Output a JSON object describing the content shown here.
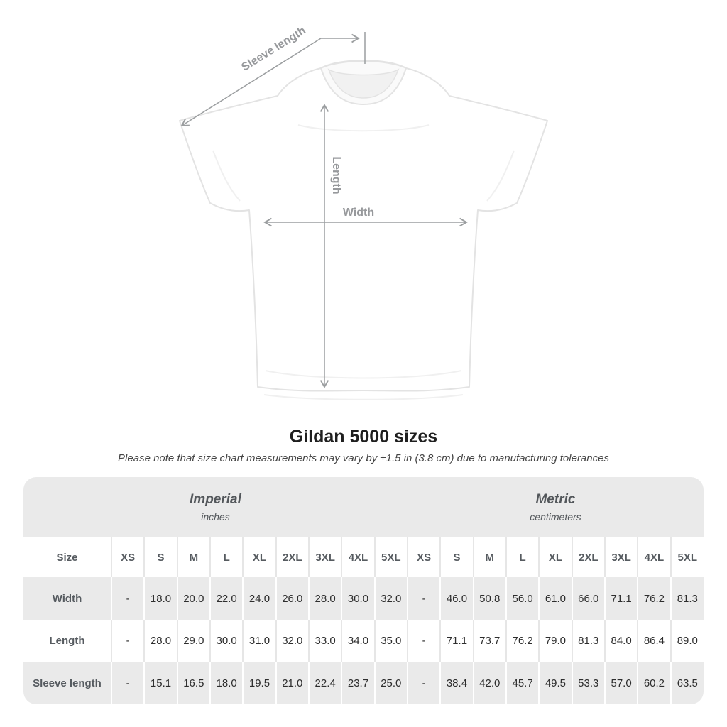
{
  "diagram": {
    "sleeve_label": "Sleeve length",
    "length_label": "Length",
    "width_label": "Width"
  },
  "title": "Gildan 5000 sizes",
  "subtitle": "Please note that size chart measurements may vary by ±1.5 in (3.8 cm) due to manufacturing tolerances",
  "table": {
    "groups": [
      {
        "label": "Imperial",
        "unit": "inches"
      },
      {
        "label": "Metric",
        "unit": "centimeters"
      }
    ],
    "size_header": "Size",
    "sizes": [
      "XS",
      "S",
      "M",
      "L",
      "XL",
      "2XL",
      "3XL",
      "4XL",
      "5XL"
    ],
    "rows": [
      {
        "label": "Width",
        "imperial": [
          "-",
          "18.0",
          "20.0",
          "22.0",
          "24.0",
          "26.0",
          "28.0",
          "30.0",
          "32.0"
        ],
        "metric": [
          "-",
          "46.0",
          "50.8",
          "56.0",
          "61.0",
          "66.0",
          "71.1",
          "76.2",
          "81.3"
        ]
      },
      {
        "label": "Length",
        "imperial": [
          "-",
          "28.0",
          "29.0",
          "30.0",
          "31.0",
          "32.0",
          "33.0",
          "34.0",
          "35.0"
        ],
        "metric": [
          "-",
          "71.1",
          "73.7",
          "76.2",
          "79.0",
          "81.3",
          "84.0",
          "86.4",
          "89.0"
        ]
      },
      {
        "label": "Sleeve length",
        "imperial": [
          "-",
          "15.1",
          "16.5",
          "18.0",
          "19.5",
          "21.0",
          "22.4",
          "23.7",
          "25.0"
        ],
        "metric": [
          "-",
          "38.4",
          "42.0",
          "45.7",
          "49.5",
          "53.3",
          "57.0",
          "60.2",
          "63.5"
        ]
      }
    ]
  },
  "colors": {
    "table_stripe": "#eaeaea",
    "separator_on_white": "#e6e6e6",
    "separator_on_gray": "#ffffff",
    "annotation_gray": "#9b9ea0",
    "title_text": "#1f1f1f",
    "value_text": "#2d2d2d",
    "header_text": "#565b60"
  }
}
